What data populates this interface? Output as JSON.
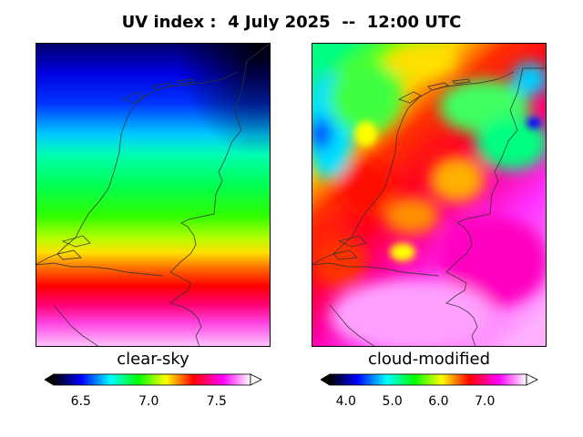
{
  "title": "UV index :  4 July 2025  --  12:00 UTC",
  "panels": [
    {
      "label": "clear-sky",
      "colorbar": {
        "range": [
          6.3,
          7.75
        ],
        "ticks": [
          "6.5",
          "7.0",
          "7.5"
        ],
        "tick_values": [
          6.5,
          7.0,
          7.5
        ]
      }
    },
    {
      "label": "cloud-modified",
      "colorbar": {
        "range": [
          3.65,
          7.9
        ],
        "ticks": [
          "4.0",
          "5.0",
          "6.0",
          "7.0"
        ],
        "tick_values": [
          4.0,
          5.0,
          6.0,
          7.0
        ]
      }
    }
  ],
  "colormap": [
    "#000000",
    "#0000ff",
    "#00ffff",
    "#00ff00",
    "#ffff00",
    "#ff0000",
    "#ff00ff",
    "#ffffff"
  ]
}
